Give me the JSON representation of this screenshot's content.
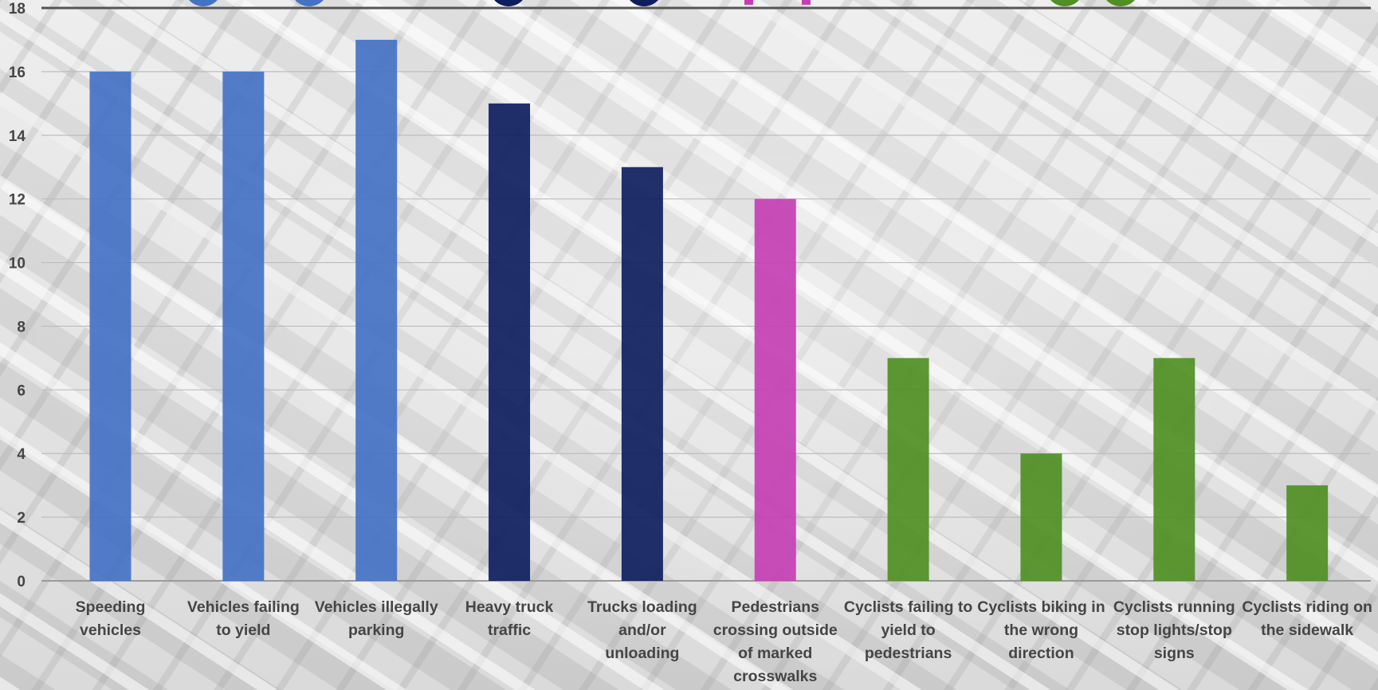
{
  "chart_data": {
    "type": "bar",
    "categories": [
      [
        "Speeding",
        "vehicles"
      ],
      [
        "Vehicles failing",
        "to yield"
      ],
      [
        "Vehicles illegally",
        "parking"
      ],
      [
        "Heavy truck",
        "traffic"
      ],
      [
        "Trucks loading",
        "and/or",
        "unloading"
      ],
      [
        "Pedestrians",
        "crossing outside",
        "of marked",
        "crosswalks"
      ],
      [
        "Cyclists failing to",
        "yield to",
        "pedestrians"
      ],
      [
        "Cyclists biking in",
        "the wrong",
        "direction"
      ],
      [
        "Cyclists running",
        "stop lights/stop",
        "signs"
      ],
      [
        "Cyclists riding on",
        "the sidewalk"
      ]
    ],
    "values": [
      16,
      16,
      17,
      15,
      13,
      12,
      7,
      4,
      7,
      3
    ],
    "colors": [
      "#4472c4",
      "#4472c4",
      "#4472c4",
      "#0e1d5e",
      "#0e1d5e",
      "#c43fb3",
      "#4f8f23",
      "#4f8f23",
      "#4f8f23",
      "#4f8f23"
    ],
    "ylim": [
      0,
      18
    ],
    "yticks": [
      0,
      2,
      4,
      6,
      8,
      10,
      12,
      14,
      16,
      18
    ],
    "title": "",
    "xlabel": "",
    "ylabel": "",
    "grid": true,
    "icon_colors": [
      "#4472c4",
      "#0e1d5e",
      "#c43fb3",
      "#4f8f23"
    ]
  }
}
